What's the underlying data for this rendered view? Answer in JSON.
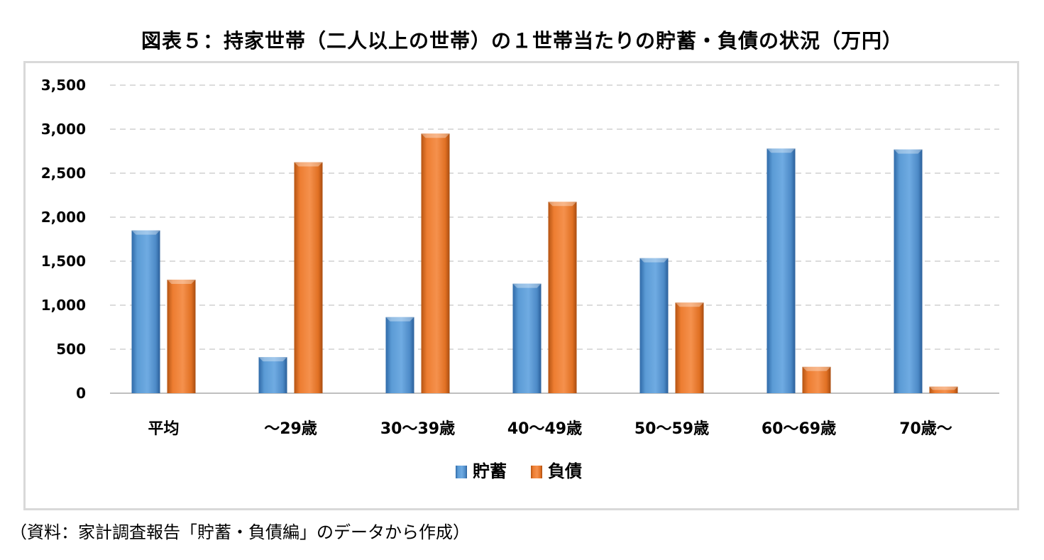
{
  "title": "図表５：持家世帯（二人以上の世帯）の１世帯当たりの貯蓄・負債の状況（万円）",
  "source": "（資料：家計調査報告「貯蓄・負債編」のデータから作成）",
  "chart_data": {
    "type": "bar",
    "title": "図表５：持家世帯（二人以上の世帯）の１世帯当たりの貯蓄・負債の状況（万円）",
    "xlabel": "",
    "ylabel": "",
    "categories": [
      "平均",
      "～29歳",
      "30～39歳",
      "40～49歳",
      "50～59歳",
      "60～69歳",
      "70歳～"
    ],
    "series": [
      {
        "name": "貯蓄",
        "color": "#5b9bd5",
        "values": [
          1850,
          410,
          865,
          1245,
          1535,
          2780,
          2770
        ]
      },
      {
        "name": "負債",
        "color": "#ed7d31",
        "values": [
          1290,
          2625,
          2950,
          2175,
          1030,
          300,
          75
        ]
      }
    ],
    "ylim": [
      0,
      3500
    ],
    "yticks": [
      0,
      500,
      1000,
      1500,
      2000,
      2500,
      3000,
      3500
    ],
    "ytick_labels": [
      "0",
      "500",
      "1,000",
      "1,500",
      "2,000",
      "2,500",
      "3,000",
      "3,500"
    ],
    "grid": true,
    "legend_position": "bottom"
  }
}
